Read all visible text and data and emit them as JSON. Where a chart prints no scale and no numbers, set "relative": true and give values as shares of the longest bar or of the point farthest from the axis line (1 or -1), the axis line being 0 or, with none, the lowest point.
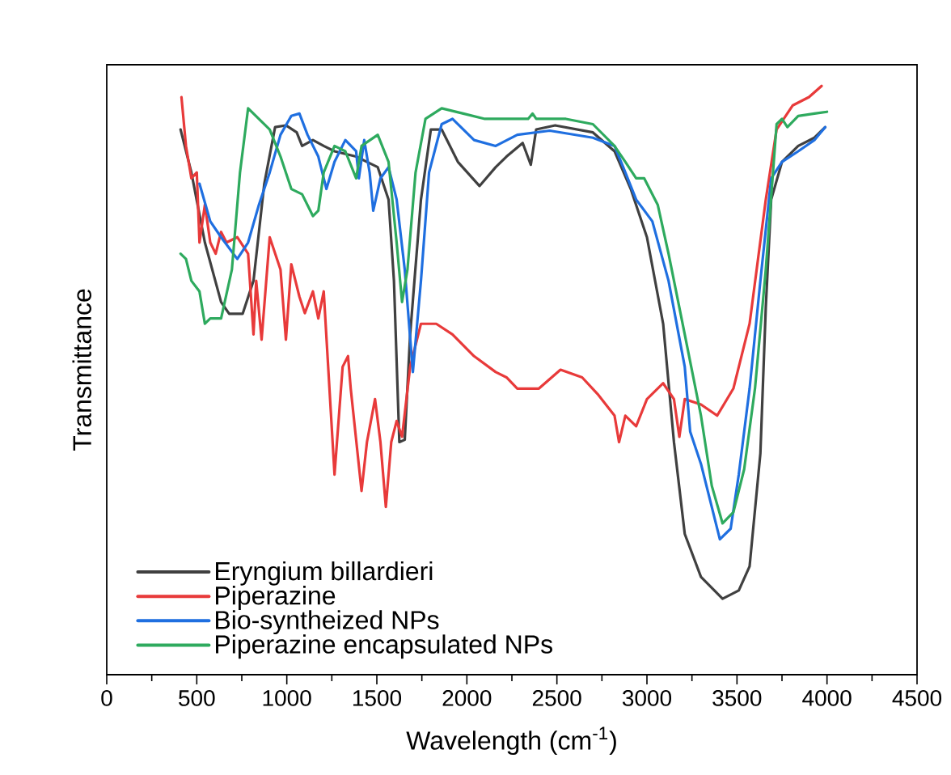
{
  "chart_data": {
    "type": "line",
    "relative": true,
    "xlabel": "Wavelength (cm$^{-1}$)",
    "ylabel": "Transmittance",
    "xlim": [
      0,
      4500
    ],
    "xticks": [
      0,
      500,
      1000,
      1500,
      2000,
      2500,
      3000,
      3500,
      4000,
      4500
    ],
    "legend": "bottom left",
    "grid": false,
    "marker": "none",
    "line_style": "solid",
    "series": [
      {
        "name": "Eryngium billardieri",
        "color": "#404040",
        "x": [
          410,
          470,
          545,
          635,
          680,
          755,
          815,
          875,
          935,
          995,
          1055,
          1085,
          1145,
          1205,
          1265,
          1385,
          1445,
          1505,
          1565,
          1595,
          1625,
          1655,
          1685,
          1745,
          1800,
          1860,
          1950,
          2070,
          2160,
          2220,
          2310,
          2355,
          2385,
          2490,
          2700,
          2820,
          2910,
          3000,
          3090,
          3150,
          3210,
          3300,
          3420,
          3510,
          3570,
          3630,
          3660,
          3690,
          3750,
          3840,
          3930,
          3990
        ],
        "values": [
          0.926,
          0.853,
          0.734,
          0.633,
          0.613,
          0.613,
          0.669,
          0.834,
          0.93,
          0.933,
          0.921,
          0.898,
          0.908,
          0.898,
          0.889,
          0.88,
          0.871,
          0.862,
          0.807,
          0.669,
          0.395,
          0.399,
          0.578,
          0.807,
          0.926,
          0.926,
          0.871,
          0.83,
          0.862,
          0.88,
          0.903,
          0.866,
          0.926,
          0.933,
          0.921,
          0.889,
          0.825,
          0.743,
          0.596,
          0.395,
          0.239,
          0.166,
          0.129,
          0.143,
          0.184,
          0.376,
          0.624,
          0.807,
          0.871,
          0.898,
          0.912,
          0.93
        ]
      },
      {
        "name": "Piperazine",
        "color": "#e83a3a",
        "x": [
          415,
          440,
          470,
          500,
          515,
          545,
          575,
          605,
          635,
          665,
          725,
          785,
          815,
          830,
          860,
          905,
          965,
          995,
          1025,
          1070,
          1100,
          1145,
          1175,
          1205,
          1265,
          1310,
          1340,
          1355,
          1415,
          1445,
          1490,
          1520,
          1550,
          1580,
          1610,
          1640,
          1685,
          1745,
          1830,
          1920,
          2040,
          2160,
          2220,
          2280,
          2400,
          2520,
          2640,
          2725,
          2820,
          2845,
          2880,
          2940,
          3000,
          3090,
          3150,
          3180,
          3210,
          3300,
          3390,
          3480,
          3570,
          3660,
          3720,
          3810,
          3900,
          3970
        ],
        "values": [
          0.981,
          0.898,
          0.843,
          0.853,
          0.734,
          0.798,
          0.734,
          0.715,
          0.752,
          0.734,
          0.743,
          0.715,
          0.578,
          0.669,
          0.569,
          0.743,
          0.688,
          0.569,
          0.697,
          0.642,
          0.614,
          0.651,
          0.605,
          0.651,
          0.34,
          0.523,
          0.541,
          0.486,
          0.312,
          0.395,
          0.468,
          0.395,
          0.285,
          0.395,
          0.431,
          0.404,
          0.523,
          0.596,
          0.596,
          0.578,
          0.541,
          0.514,
          0.505,
          0.486,
          0.486,
          0.518,
          0.505,
          0.477,
          0.44,
          0.395,
          0.44,
          0.422,
          0.468,
          0.495,
          0.468,
          0.404,
          0.468,
          0.459,
          0.44,
          0.486,
          0.596,
          0.807,
          0.926,
          0.967,
          0.981,
          1.0
        ]
      },
      {
        "name": "Bio-syntheized NPs",
        "color": "#1f6fe0",
        "x": [
          515,
          575,
          635,
          725,
          785,
          845,
          905,
          965,
          1025,
          1070,
          1115,
          1175,
          1220,
          1265,
          1325,
          1385,
          1400,
          1430,
          1460,
          1480,
          1520,
          1565,
          1610,
          1655,
          1700,
          1745,
          1790,
          1860,
          1920,
          2040,
          2160,
          2280,
          2460,
          2700,
          2820,
          2880,
          2940,
          3030,
          3120,
          3210,
          3240,
          3300,
          3360,
          3405,
          3465,
          3510,
          3570,
          3630,
          3690,
          3750,
          3840,
          3930,
          3990
        ],
        "values": [
          0.834,
          0.77,
          0.743,
          0.706,
          0.734,
          0.798,
          0.853,
          0.917,
          0.949,
          0.953,
          0.917,
          0.88,
          0.825,
          0.871,
          0.908,
          0.889,
          0.843,
          0.908,
          0.853,
          0.788,
          0.843,
          0.862,
          0.807,
          0.688,
          0.514,
          0.669,
          0.853,
          0.935,
          0.944,
          0.908,
          0.898,
          0.917,
          0.924,
          0.912,
          0.898,
          0.853,
          0.807,
          0.77,
          0.669,
          0.523,
          0.413,
          0.358,
          0.285,
          0.23,
          0.248,
          0.34,
          0.486,
          0.669,
          0.843,
          0.871,
          0.889,
          0.908,
          0.93
        ]
      },
      {
        "name": "Piperazine encapsulated NPs",
        "color": "#2eaa5e",
        "x": [
          410,
          440,
          470,
          515,
          545,
          575,
          635,
          695,
          740,
          785,
          845,
          905,
          965,
          1025,
          1085,
          1145,
          1175,
          1205,
          1265,
          1325,
          1385,
          1415,
          1505,
          1565,
          1610,
          1640,
          1670,
          1715,
          1770,
          1860,
          1980,
          2100,
          2340,
          2365,
          2385,
          2550,
          2700,
          2820,
          2880,
          2940,
          2985,
          3060,
          3120,
          3210,
          3300,
          3360,
          3420,
          3480,
          3540,
          3600,
          3660,
          3720,
          3750,
          3780,
          3840,
          3930,
          4000
        ],
        "values": [
          0.715,
          0.706,
          0.669,
          0.651,
          0.596,
          0.605,
          0.605,
          0.688,
          0.853,
          0.962,
          0.944,
          0.926,
          0.88,
          0.825,
          0.816,
          0.779,
          0.788,
          0.853,
          0.898,
          0.889,
          0.843,
          0.898,
          0.917,
          0.871,
          0.734,
          0.633,
          0.688,
          0.853,
          0.944,
          0.962,
          0.953,
          0.944,
          0.944,
          0.953,
          0.944,
          0.944,
          0.935,
          0.898,
          0.871,
          0.843,
          0.843,
          0.798,
          0.715,
          0.578,
          0.44,
          0.321,
          0.257,
          0.276,
          0.349,
          0.486,
          0.688,
          0.935,
          0.944,
          0.93,
          0.949,
          0.953,
          0.956
        ]
      }
    ]
  }
}
